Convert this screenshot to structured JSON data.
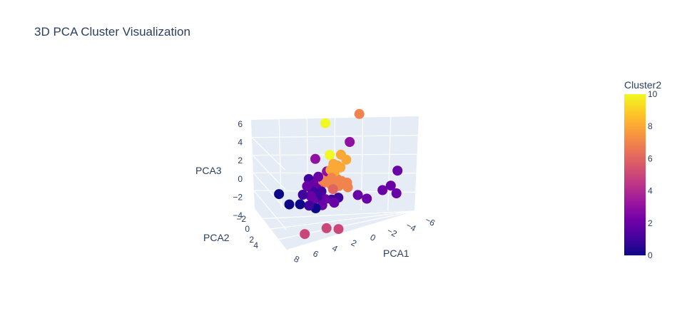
{
  "chart_data": {
    "type": "scatter3d",
    "title": "3D PCA Cluster Visualization",
    "axes": {
      "x": {
        "label": "PCA1",
        "ticks": [
          "−6",
          "−4",
          "−2",
          "0",
          "2",
          "4",
          "6",
          "8"
        ]
      },
      "y": {
        "label": "PCA2",
        "ticks": [
          "−2",
          "0",
          "2",
          "4"
        ]
      },
      "z": {
        "label": "PCA3",
        "ticks": [
          "−4",
          "−2",
          "0",
          "2",
          "4",
          "6"
        ]
      }
    },
    "colorbar": {
      "title": "Cluster2",
      "range": [
        0,
        10
      ],
      "ticks": [
        "0",
        "2",
        "4",
        "6",
        "8",
        "10"
      ],
      "colorscale": [
        "#0d0887",
        "#46039f",
        "#7201a8",
        "#9c179e",
        "#bd3786",
        "#d8576b",
        "#ed7953",
        "#fb9f3a",
        "#fdca26",
        "#f0f921"
      ]
    },
    "points": [
      {
        "x": 1.0,
        "y": -0.5,
        "z": 6.2,
        "c": 10
      },
      {
        "x": -1.4,
        "y": -1.5,
        "z": 6.6,
        "c": 7
      },
      {
        "x": 1.7,
        "y": -0.2,
        "z": 3.2,
        "c": 3
      },
      {
        "x": -0.8,
        "y": -1.0,
        "z": 4.3,
        "c": 3
      },
      {
        "x": 0.6,
        "y": -0.4,
        "z": 3.4,
        "c": 10
      },
      {
        "x": 0.8,
        "y": -0.3,
        "z": 2.0,
        "c": 3
      },
      {
        "x": -0.2,
        "y": -0.7,
        "z": 3.3,
        "c": 8
      },
      {
        "x": -0.6,
        "y": -0.8,
        "z": 2.8,
        "c": 8
      },
      {
        "x": 0.3,
        "y": -0.4,
        "z": 2.6,
        "c": 8
      },
      {
        "x": 0.0,
        "y": -0.5,
        "z": 2.4,
        "c": 8
      },
      {
        "x": -0.2,
        "y": -0.6,
        "z": 2.2,
        "c": 8
      },
      {
        "x": 0.5,
        "y": -0.3,
        "z": 2.1,
        "c": 8
      },
      {
        "x": 0.2,
        "y": -0.4,
        "z": 1.9,
        "c": 8
      },
      {
        "x": 1.0,
        "y": -0.5,
        "z": 1.6,
        "c": 8
      },
      {
        "x": 0.4,
        "y": -0.3,
        "z": 1.4,
        "c": 7
      },
      {
        "x": 0.8,
        "y": -0.4,
        "z": 1.2,
        "c": 7
      },
      {
        "x": 0.0,
        "y": -0.5,
        "z": 1.2,
        "c": 7
      },
      {
        "x": 1.1,
        "y": -0.3,
        "z": 1.0,
        "c": 7
      },
      {
        "x": 0.5,
        "y": -0.4,
        "z": 0.8,
        "c": 7
      },
      {
        "x": -0.3,
        "y": -0.6,
        "z": 1.0,
        "c": 7
      },
      {
        "x": -0.1,
        "y": -0.5,
        "z": 0.6,
        "c": 7
      },
      {
        "x": -0.7,
        "y": -0.7,
        "z": 0.8,
        "c": 7
      },
      {
        "x": -0.8,
        "y": -0.6,
        "z": 0.4,
        "c": 7
      },
      {
        "x": 1.4,
        "y": -0.2,
        "z": 0.5,
        "c": 6
      },
      {
        "x": 0.3,
        "y": -0.3,
        "z": 0.4,
        "c": 6
      },
      {
        "x": 1.5,
        "y": -0.3,
        "z": 1.6,
        "c": 2
      },
      {
        "x": 2.2,
        "y": -0.1,
        "z": 1.5,
        "c": 1
      },
      {
        "x": 1.8,
        "y": -0.1,
        "z": 1.0,
        "c": 2
      },
      {
        "x": 2.3,
        "y": 0.0,
        "z": 0.9,
        "c": 2
      },
      {
        "x": 1.6,
        "y": -0.2,
        "z": 0.6,
        "c": 2
      },
      {
        "x": 1.9,
        "y": -0.1,
        "z": 0.4,
        "c": 1
      },
      {
        "x": 1.2,
        "y": -0.2,
        "z": 0.3,
        "c": 1
      },
      {
        "x": 2.6,
        "y": 0.1,
        "z": 0.2,
        "c": 1
      },
      {
        "x": 2.0,
        "y": 0.0,
        "z": 0.0,
        "c": 2
      },
      {
        "x": 1.5,
        "y": -0.1,
        "z": -0.2,
        "c": 1
      },
      {
        "x": 1.8,
        "y": 0.0,
        "z": -0.4,
        "c": 2
      },
      {
        "x": 0.9,
        "y": -0.2,
        "z": -0.4,
        "c": 2
      },
      {
        "x": 2.1,
        "y": 0.1,
        "z": -0.8,
        "c": 1
      },
      {
        "x": 0.4,
        "y": -0.3,
        "z": -0.5,
        "c": 1
      },
      {
        "x": 1.1,
        "y": -0.1,
        "z": -0.9,
        "c": 2
      },
      {
        "x": 0.2,
        "y": -0.3,
        "z": -0.8,
        "c": 2
      },
      {
        "x": -0.1,
        "y": -0.4,
        "z": -0.4,
        "c": 1
      },
      {
        "x": 4.4,
        "y": 0.5,
        "z": 0.5,
        "c": 0
      },
      {
        "x": 3.6,
        "y": 0.4,
        "z": -0.5,
        "c": 0
      },
      {
        "x": 2.8,
        "y": 0.2,
        "z": -0.6,
        "c": 0
      },
      {
        "x": 1.6,
        "y": 0.0,
        "z": -1.1,
        "c": 0
      },
      {
        "x": -1.5,
        "y": -0.9,
        "z": -0.4,
        "c": 2
      },
      {
        "x": -2.2,
        "y": -1.0,
        "z": -0.8,
        "c": 2
      },
      {
        "x": -3.4,
        "y": -1.2,
        "z": -0.2,
        "c": 2
      },
      {
        "x": -4.0,
        "y": -1.4,
        "z": 0.1,
        "c": 2
      },
      {
        "x": -4.4,
        "y": -1.8,
        "z": 1.3,
        "c": 2
      },
      {
        "x": -4.5,
        "y": -1.3,
        "z": -0.6,
        "c": 2
      },
      {
        "x": 0.9,
        "y": -0.5,
        "z": -3.0,
        "c": 5
      },
      {
        "x": 0.0,
        "y": -0.7,
        "z": -3.2,
        "c": 5
      },
      {
        "x": 2.3,
        "y": 0.5,
        "z": -3.2,
        "c": 5
      }
    ]
  }
}
